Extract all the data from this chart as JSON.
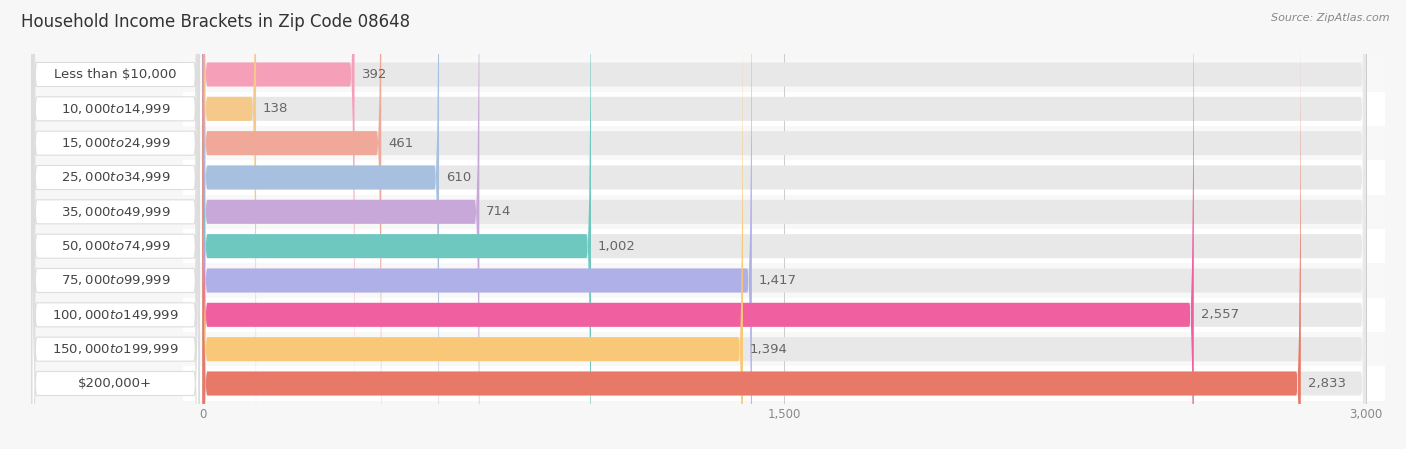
{
  "title": "Household Income Brackets in Zip Code 08648",
  "source": "Source: ZipAtlas.com",
  "categories": [
    "Less than $10,000",
    "$10,000 to $14,999",
    "$15,000 to $24,999",
    "$25,000 to $34,999",
    "$35,000 to $49,999",
    "$50,000 to $74,999",
    "$75,000 to $99,999",
    "$100,000 to $149,999",
    "$150,000 to $199,999",
    "$200,000+"
  ],
  "values": [
    392,
    138,
    461,
    610,
    714,
    1002,
    1417,
    2557,
    1394,
    2833
  ],
  "bar_colors": [
    "#f5a0b8",
    "#f5c98a",
    "#f0a898",
    "#a8c0e0",
    "#c8a8d8",
    "#6ec8c0",
    "#b0b0e8",
    "#f060a0",
    "#f8c878",
    "#e87868"
  ],
  "background_color": "#f7f7f7",
  "row_bg_color": "#ffffff",
  "row_alt_bg": "#f0f0f0",
  "label_pill_color": "#ffffff",
  "xlim": [
    0,
    3000
  ],
  "xticks": [
    0,
    1500,
    3000
  ],
  "title_fontsize": 12,
  "label_fontsize": 9.5,
  "value_fontsize": 9.5,
  "source_fontsize": 8
}
